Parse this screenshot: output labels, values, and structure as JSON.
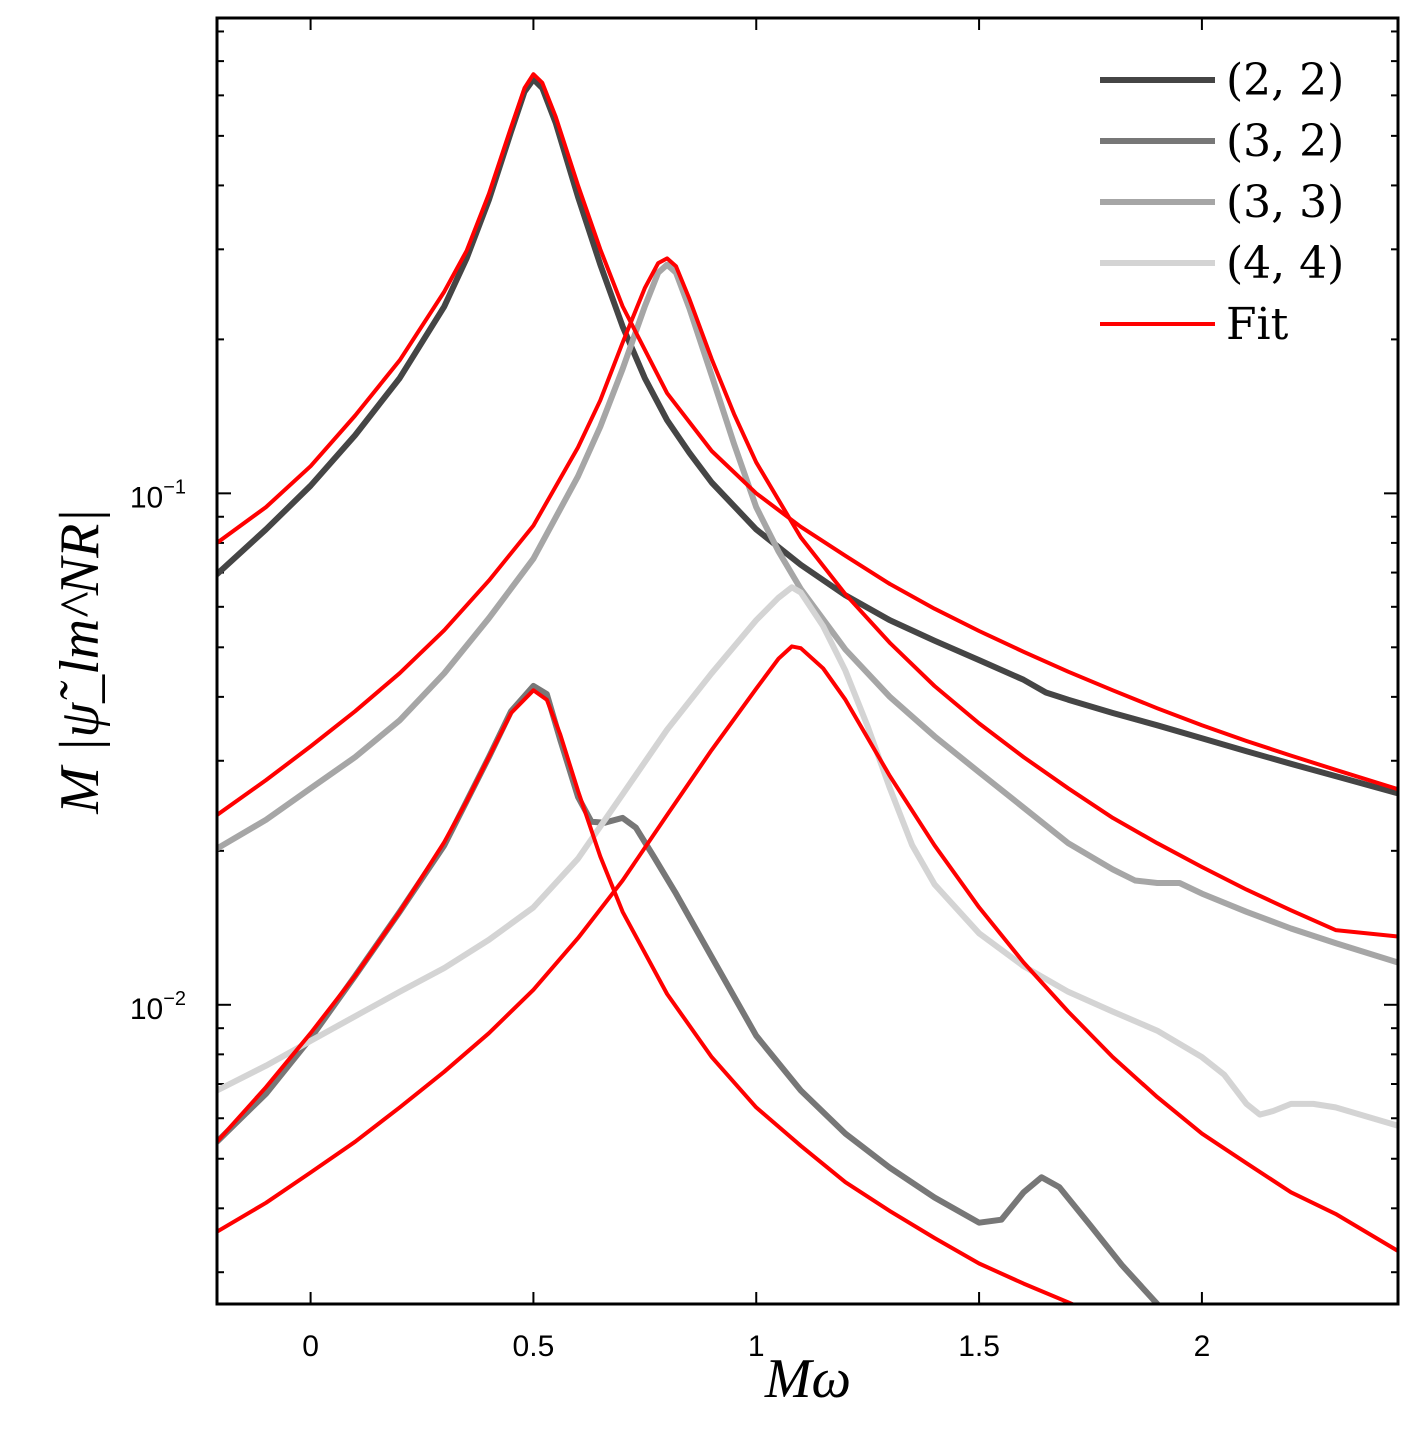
{
  "chart_data": {
    "type": "line",
    "title": "",
    "xlabel": "Mω",
    "ylabel": "M |ψ̃_lm^NR|",
    "y_scale": "log",
    "xlim": [
      -0.21,
      2.44
    ],
    "ylim": [
      0.0026,
      0.85
    ],
    "x_ticks": [
      {
        "value": 0,
        "label": "0"
      },
      {
        "value": 0.5,
        "label": "0.5"
      },
      {
        "value": 1,
        "label": "1"
      },
      {
        "value": 1.5,
        "label": "1.5"
      },
      {
        "value": 2,
        "label": "2"
      }
    ],
    "y_ticks": [
      {
        "value": 0.1,
        "base": "10",
        "exp": "−1"
      },
      {
        "value": 0.01,
        "base": "10",
        "exp": "−2"
      }
    ],
    "legend_position": "top-right",
    "series": [
      {
        "name": "(2, 2)",
        "color": "#454545",
        "width": 6,
        "points": [
          [
            -0.21,
            0.0695
          ],
          [
            -0.1,
            0.085
          ],
          [
            0.0,
            0.1035
          ],
          [
            0.1,
            0.13
          ],
          [
            0.2,
            0.168
          ],
          [
            0.3,
            0.232
          ],
          [
            0.35,
            0.288
          ],
          [
            0.4,
            0.375
          ],
          [
            0.45,
            0.51
          ],
          [
            0.48,
            0.61
          ],
          [
            0.5,
            0.645
          ],
          [
            0.52,
            0.62
          ],
          [
            0.55,
            0.53
          ],
          [
            0.6,
            0.38
          ],
          [
            0.65,
            0.28
          ],
          [
            0.7,
            0.212
          ],
          [
            0.75,
            0.168
          ],
          [
            0.8,
            0.139
          ],
          [
            0.85,
            0.12
          ],
          [
            0.9,
            0.105
          ],
          [
            1.0,
            0.085
          ],
          [
            1.1,
            0.0725
          ],
          [
            1.2,
            0.0632
          ],
          [
            1.3,
            0.0565
          ],
          [
            1.4,
            0.0515
          ],
          [
            1.5,
            0.0472
          ],
          [
            1.6,
            0.0432
          ],
          [
            1.65,
            0.0408
          ],
          [
            1.7,
            0.0395
          ],
          [
            1.8,
            0.0372
          ],
          [
            1.9,
            0.0352
          ],
          [
            2.0,
            0.0332
          ],
          [
            2.1,
            0.0313
          ],
          [
            2.2,
            0.0296
          ],
          [
            2.3,
            0.028
          ],
          [
            2.44,
            0.0259
          ]
        ]
      },
      {
        "name": "(3, 2)",
        "color": "#777777",
        "width": 6,
        "points": [
          [
            -0.21,
            0.0054
          ],
          [
            -0.1,
            0.0067
          ],
          [
            0.0,
            0.0086
          ],
          [
            0.1,
            0.0114
          ],
          [
            0.2,
            0.0152
          ],
          [
            0.3,
            0.0205
          ],
          [
            0.35,
            0.025
          ],
          [
            0.4,
            0.0305
          ],
          [
            0.45,
            0.0375
          ],
          [
            0.5,
            0.042
          ],
          [
            0.53,
            0.0405
          ],
          [
            0.56,
            0.033
          ],
          [
            0.6,
            0.0255
          ],
          [
            0.63,
            0.0228
          ],
          [
            0.66,
            0.0227
          ],
          [
            0.7,
            0.0232
          ],
          [
            0.73,
            0.0222
          ],
          [
            0.77,
            0.0195
          ],
          [
            0.82,
            0.0165
          ],
          [
            0.9,
            0.0124
          ],
          [
            1.0,
            0.0087
          ],
          [
            1.1,
            0.0068
          ],
          [
            1.2,
            0.0056
          ],
          [
            1.3,
            0.0048
          ],
          [
            1.4,
            0.0042
          ],
          [
            1.5,
            0.00375
          ],
          [
            1.55,
            0.0038
          ],
          [
            1.6,
            0.0043
          ],
          [
            1.64,
            0.0046
          ],
          [
            1.68,
            0.0044
          ],
          [
            1.75,
            0.0037
          ],
          [
            1.82,
            0.0031
          ],
          [
            1.9,
            0.0026
          ]
        ]
      },
      {
        "name": "(3, 3)",
        "color": "#a6a6a6",
        "width": 6,
        "points": [
          [
            -0.21,
            0.0202
          ],
          [
            -0.1,
            0.023
          ],
          [
            0.0,
            0.0265
          ],
          [
            0.1,
            0.0305
          ],
          [
            0.2,
            0.036
          ],
          [
            0.3,
            0.0445
          ],
          [
            0.4,
            0.057
          ],
          [
            0.5,
            0.0745
          ],
          [
            0.6,
            0.108
          ],
          [
            0.65,
            0.135
          ],
          [
            0.7,
            0.175
          ],
          [
            0.75,
            0.232
          ],
          [
            0.78,
            0.27
          ],
          [
            0.8,
            0.28
          ],
          [
            0.82,
            0.27
          ],
          [
            0.85,
            0.23
          ],
          [
            0.9,
            0.17
          ],
          [
            0.95,
            0.125
          ],
          [
            1.0,
            0.094
          ],
          [
            1.05,
            0.077
          ],
          [
            1.1,
            0.065
          ],
          [
            1.2,
            0.0495
          ],
          [
            1.3,
            0.04
          ],
          [
            1.4,
            0.0335
          ],
          [
            1.5,
            0.0285
          ],
          [
            1.6,
            0.0243
          ],
          [
            1.7,
            0.0207
          ],
          [
            1.8,
            0.0184
          ],
          [
            1.85,
            0.0175
          ],
          [
            1.9,
            0.0173
          ],
          [
            1.95,
            0.0173
          ],
          [
            2.0,
            0.0165
          ],
          [
            2.1,
            0.0152
          ],
          [
            2.2,
            0.0141
          ],
          [
            2.3,
            0.0132
          ],
          [
            2.44,
            0.0121
          ]
        ]
      },
      {
        "name": "(4, 4)",
        "color": "#d4d4d4",
        "width": 6,
        "points": [
          [
            -0.21,
            0.0068
          ],
          [
            -0.1,
            0.0076
          ],
          [
            0.0,
            0.0085
          ],
          [
            0.1,
            0.0095
          ],
          [
            0.2,
            0.0106
          ],
          [
            0.3,
            0.0118
          ],
          [
            0.4,
            0.0134
          ],
          [
            0.5,
            0.0155
          ],
          [
            0.6,
            0.0193
          ],
          [
            0.7,
            0.0258
          ],
          [
            0.8,
            0.0345
          ],
          [
            0.9,
            0.0445
          ],
          [
            1.0,
            0.0565
          ],
          [
            1.05,
            0.0625
          ],
          [
            1.08,
            0.0655
          ],
          [
            1.1,
            0.064
          ],
          [
            1.15,
            0.055
          ],
          [
            1.2,
            0.045
          ],
          [
            1.25,
            0.035
          ],
          [
            1.3,
            0.0265
          ],
          [
            1.35,
            0.0205
          ],
          [
            1.4,
            0.0172
          ],
          [
            1.5,
            0.0138
          ],
          [
            1.6,
            0.0119
          ],
          [
            1.7,
            0.0106
          ],
          [
            1.8,
            0.0097
          ],
          [
            1.9,
            0.0089
          ],
          [
            2.0,
            0.0079
          ],
          [
            2.05,
            0.0073
          ],
          [
            2.1,
            0.0064
          ],
          [
            2.13,
            0.0061
          ],
          [
            2.16,
            0.0062
          ],
          [
            2.2,
            0.0064
          ],
          [
            2.25,
            0.0064
          ],
          [
            2.3,
            0.0063
          ],
          [
            2.44,
            0.0058
          ]
        ]
      },
      {
        "name": "Fit",
        "color": "#ff0000",
        "width": 4,
        "curves": [
          [
            [
              -0.21,
              0.08
            ],
            [
              -0.1,
              0.094
            ],
            [
              0.0,
              0.113
            ],
            [
              0.1,
              0.142
            ],
            [
              0.2,
              0.182
            ],
            [
              0.3,
              0.248
            ],
            [
              0.35,
              0.298
            ],
            [
              0.4,
              0.385
            ],
            [
              0.45,
              0.52
            ],
            [
              0.48,
              0.62
            ],
            [
              0.5,
              0.66
            ],
            [
              0.52,
              0.635
            ],
            [
              0.55,
              0.545
            ],
            [
              0.6,
              0.4
            ],
            [
              0.65,
              0.3
            ],
            [
              0.7,
              0.232
            ],
            [
              0.8,
              0.157
            ],
            [
              0.9,
              0.121
            ],
            [
              1.0,
              0.1
            ],
            [
              1.1,
              0.086
            ],
            [
              1.2,
              0.0755
            ],
            [
              1.3,
              0.0665
            ],
            [
              1.4,
              0.0595
            ],
            [
              1.5,
              0.0538
            ],
            [
              1.6,
              0.049
            ],
            [
              1.7,
              0.0448
            ],
            [
              1.8,
              0.0412
            ],
            [
              1.9,
              0.038
            ],
            [
              2.0,
              0.0352
            ],
            [
              2.1,
              0.0328
            ],
            [
              2.2,
              0.0307
            ],
            [
              2.3,
              0.0288
            ],
            [
              2.44,
              0.0264
            ]
          ],
          [
            [
              -0.21,
              0.0235
            ],
            [
              -0.1,
              0.0275
            ],
            [
              0.0,
              0.032
            ],
            [
              0.1,
              0.0375
            ],
            [
              0.2,
              0.0445
            ],
            [
              0.3,
              0.054
            ],
            [
              0.4,
              0.0675
            ],
            [
              0.5,
              0.0865
            ],
            [
              0.6,
              0.123
            ],
            [
              0.65,
              0.152
            ],
            [
              0.7,
              0.197
            ],
            [
              0.75,
              0.252
            ],
            [
              0.78,
              0.282
            ],
            [
              0.8,
              0.288
            ],
            [
              0.82,
              0.278
            ],
            [
              0.85,
              0.24
            ],
            [
              0.9,
              0.183
            ],
            [
              0.95,
              0.143
            ],
            [
              1.0,
              0.115
            ],
            [
              1.1,
              0.082
            ],
            [
              1.2,
              0.0635
            ],
            [
              1.3,
              0.051
            ],
            [
              1.4,
              0.042
            ],
            [
              1.5,
              0.0355
            ],
            [
              1.6,
              0.0305
            ],
            [
              1.7,
              0.0265
            ],
            [
              1.8,
              0.0232
            ],
            [
              1.9,
              0.0207
            ],
            [
              2.0,
              0.0186
            ],
            [
              2.1,
              0.0168
            ],
            [
              2.2,
              0.0153
            ],
            [
              2.3,
              0.014
            ],
            [
              2.44,
              0.0136
            ]
          ],
          [
            [
              -0.21,
              0.0054
            ],
            [
              -0.1,
              0.0069
            ],
            [
              0.0,
              0.0088
            ],
            [
              0.1,
              0.0114
            ],
            [
              0.2,
              0.0152
            ],
            [
              0.3,
              0.0208
            ],
            [
              0.35,
              0.025
            ],
            [
              0.4,
              0.0305
            ],
            [
              0.45,
              0.0372
            ],
            [
              0.5,
              0.0412
            ],
            [
              0.53,
              0.0395
            ],
            [
              0.56,
              0.0338
            ],
            [
              0.6,
              0.0262
            ],
            [
              0.65,
              0.0195
            ],
            [
              0.7,
              0.0152
            ],
            [
              0.8,
              0.0105
            ],
            [
              0.9,
              0.0079
            ],
            [
              1.0,
              0.0063
            ],
            [
              1.1,
              0.0053
            ],
            [
              1.2,
              0.0045
            ],
            [
              1.3,
              0.00395
            ],
            [
              1.4,
              0.0035
            ],
            [
              1.5,
              0.00312
            ],
            [
              1.6,
              0.00285
            ],
            [
              1.7,
              0.00262
            ],
            [
              1.8,
              0.0024
            ]
          ],
          [
            [
              -0.21,
              0.0036
            ],
            [
              -0.1,
              0.0041
            ],
            [
              0.0,
              0.0047
            ],
            [
              0.1,
              0.0054
            ],
            [
              0.2,
              0.0063
            ],
            [
              0.3,
              0.0074
            ],
            [
              0.4,
              0.0088
            ],
            [
              0.5,
              0.0107
            ],
            [
              0.6,
              0.0135
            ],
            [
              0.7,
              0.0175
            ],
            [
              0.8,
              0.0235
            ],
            [
              0.9,
              0.0315
            ],
            [
              1.0,
              0.0415
            ],
            [
              1.05,
              0.0475
            ],
            [
              1.08,
              0.0502
            ],
            [
              1.1,
              0.0498
            ],
            [
              1.15,
              0.0455
            ],
            [
              1.2,
              0.0395
            ],
            [
              1.3,
              0.028
            ],
            [
              1.4,
              0.0205
            ],
            [
              1.5,
              0.0155
            ],
            [
              1.6,
              0.0121
            ],
            [
              1.7,
              0.0097
            ],
            [
              1.8,
              0.0079
            ],
            [
              1.9,
              0.0066
            ],
            [
              2.0,
              0.0056
            ],
            [
              2.1,
              0.0049
            ],
            [
              2.2,
              0.0043
            ],
            [
              2.3,
              0.0039
            ],
            [
              2.44,
              0.0033
            ]
          ]
        ]
      }
    ]
  }
}
